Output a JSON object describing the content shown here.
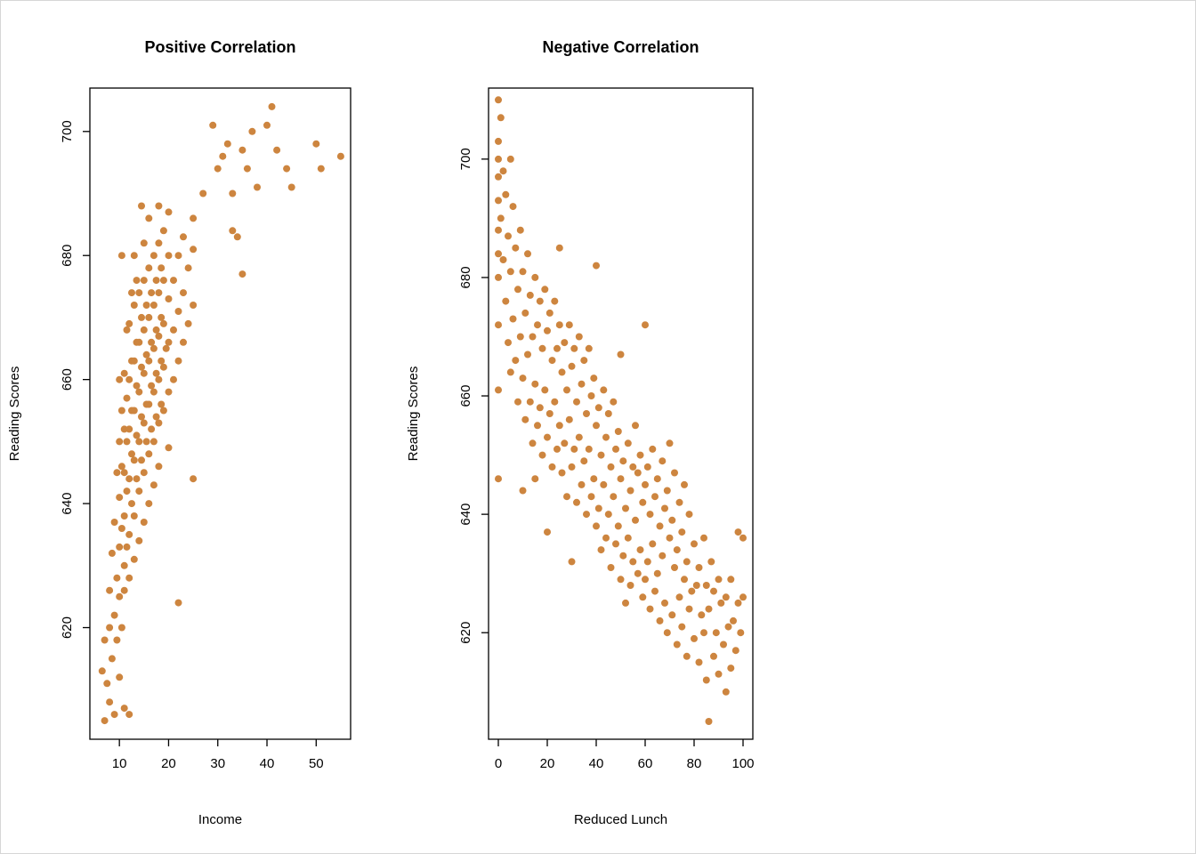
{
  "page": {
    "background": "#ffffff"
  },
  "chart_data": [
    {
      "type": "scatter",
      "title": "Positive Correlation",
      "xlabel": "Income",
      "ylabel": "Reading Scores",
      "xlim": [
        4,
        57
      ],
      "ylim": [
        602,
        707
      ],
      "xticks": [
        10,
        20,
        30,
        40,
        50
      ],
      "yticks": [
        620,
        640,
        660,
        680,
        700
      ],
      "point_color": "#CD853F",
      "grid": false,
      "points": [
        [
          6.5,
          613
        ],
        [
          7,
          605
        ],
        [
          7,
          618
        ],
        [
          7.5,
          611
        ],
        [
          8,
          620
        ],
        [
          8,
          608
        ],
        [
          8,
          626
        ],
        [
          8.5,
          615
        ],
        [
          8.5,
          632
        ],
        [
          9,
          606
        ],
        [
          9,
          622
        ],
        [
          9,
          637
        ],
        [
          9.5,
          628
        ],
        [
          9.5,
          645
        ],
        [
          9.5,
          618
        ],
        [
          10,
          612
        ],
        [
          10,
          625
        ],
        [
          10,
          633
        ],
        [
          10,
          641
        ],
        [
          10,
          650
        ],
        [
          10,
          660
        ],
        [
          10.5,
          636
        ],
        [
          10.5,
          646
        ],
        [
          10.5,
          655
        ],
        [
          10.5,
          620
        ],
        [
          10.5,
          680
        ],
        [
          11,
          630
        ],
        [
          11,
          638
        ],
        [
          11,
          645
        ],
        [
          11,
          652
        ],
        [
          11,
          661
        ],
        [
          11,
          626
        ],
        [
          11,
          607
        ],
        [
          11.5,
          642
        ],
        [
          11.5,
          650
        ],
        [
          11.5,
          657
        ],
        [
          11.5,
          633
        ],
        [
          11.5,
          668
        ],
        [
          12,
          635
        ],
        [
          12,
          644
        ],
        [
          12,
          652
        ],
        [
          12,
          660
        ],
        [
          12,
          669
        ],
        [
          12,
          628
        ],
        [
          12,
          606
        ],
        [
          12.5,
          648
        ],
        [
          12.5,
          655
        ],
        [
          12.5,
          663
        ],
        [
          12.5,
          640
        ],
        [
          12.5,
          674
        ],
        [
          13,
          638
        ],
        [
          13,
          647
        ],
        [
          13,
          655
        ],
        [
          13,
          663
        ],
        [
          13,
          672
        ],
        [
          13,
          631
        ],
        [
          13,
          680
        ],
        [
          13.5,
          651
        ],
        [
          13.5,
          659
        ],
        [
          13.5,
          666
        ],
        [
          13.5,
          644
        ],
        [
          13.5,
          676
        ],
        [
          14,
          642
        ],
        [
          14,
          650
        ],
        [
          14,
          658
        ],
        [
          14,
          666
        ],
        [
          14,
          674
        ],
        [
          14,
          634
        ],
        [
          14.5,
          654
        ],
        [
          14.5,
          662
        ],
        [
          14.5,
          670
        ],
        [
          14.5,
          647
        ],
        [
          14.5,
          688
        ],
        [
          15,
          645
        ],
        [
          15,
          653
        ],
        [
          15,
          661
        ],
        [
          15,
          668
        ],
        [
          15,
          676
        ],
        [
          15,
          637
        ],
        [
          15,
          682
        ],
        [
          15.5,
          656
        ],
        [
          15.5,
          664
        ],
        [
          15.5,
          672
        ],
        [
          15.5,
          650
        ],
        [
          16,
          648
        ],
        [
          16,
          656
        ],
        [
          16,
          663
        ],
        [
          16,
          670
        ],
        [
          16,
          678
        ],
        [
          16,
          640
        ],
        [
          16,
          686
        ],
        [
          16.5,
          659
        ],
        [
          16.5,
          666
        ],
        [
          16.5,
          674
        ],
        [
          16.5,
          652
        ],
        [
          17,
          650
        ],
        [
          17,
          658
        ],
        [
          17,
          665
        ],
        [
          17,
          672
        ],
        [
          17,
          680
        ],
        [
          17,
          643
        ],
        [
          17.5,
          661
        ],
        [
          17.5,
          668
        ],
        [
          17.5,
          676
        ],
        [
          17.5,
          654
        ],
        [
          18,
          653
        ],
        [
          18,
          660
        ],
        [
          18,
          667
        ],
        [
          18,
          674
        ],
        [
          18,
          682
        ],
        [
          18,
          646
        ],
        [
          18,
          688
        ],
        [
          18.5,
          663
        ],
        [
          18.5,
          670
        ],
        [
          18.5,
          678
        ],
        [
          18.5,
          656
        ],
        [
          19,
          655
        ],
        [
          19,
          662
        ],
        [
          19,
          669
        ],
        [
          19,
          676
        ],
        [
          19,
          684
        ],
        [
          19.5,
          665
        ],
        [
          20,
          658
        ],
        [
          20,
          666
        ],
        [
          20,
          673
        ],
        [
          20,
          680
        ],
        [
          20,
          687
        ],
        [
          20,
          649
        ],
        [
          21,
          660
        ],
        [
          21,
          668
        ],
        [
          21,
          676
        ],
        [
          22,
          663
        ],
        [
          22,
          671
        ],
        [
          22,
          680
        ],
        [
          22,
          624
        ],
        [
          23,
          666
        ],
        [
          23,
          674
        ],
        [
          23,
          683
        ],
        [
          24,
          669
        ],
        [
          24,
          678
        ],
        [
          25,
          672
        ],
        [
          25,
          681
        ],
        [
          25,
          644
        ],
        [
          25,
          686
        ],
        [
          27,
          690
        ],
        [
          29,
          701
        ],
        [
          30,
          694
        ],
        [
          31,
          696
        ],
        [
          32,
          698
        ],
        [
          33,
          690
        ],
        [
          33,
          684
        ],
        [
          34,
          683
        ],
        [
          35,
          677
        ],
        [
          35,
          697
        ],
        [
          36,
          694
        ],
        [
          37,
          700
        ],
        [
          38,
          691
        ],
        [
          40,
          701
        ],
        [
          41,
          704
        ],
        [
          42,
          697
        ],
        [
          44,
          694
        ],
        [
          45,
          691
        ],
        [
          50,
          698
        ],
        [
          51,
          694
        ],
        [
          55,
          696
        ]
      ]
    },
    {
      "type": "scatter",
      "title": "Negative Correlation",
      "xlabel": "Reduced Lunch",
      "ylabel": "Reading Scores",
      "xlim": [
        -4,
        104
      ],
      "ylim": [
        602,
        712
      ],
      "xticks": [
        0,
        20,
        40,
        60,
        80,
        100
      ],
      "yticks": [
        620,
        640,
        660,
        680,
        700
      ],
      "point_color": "#CD853F",
      "grid": false,
      "points": [
        [
          0,
          710
        ],
        [
          0,
          703
        ],
        [
          0,
          700
        ],
        [
          0,
          697
        ],
        [
          0,
          693
        ],
        [
          0,
          688
        ],
        [
          0,
          684
        ],
        [
          0,
          680
        ],
        [
          0,
          672
        ],
        [
          0,
          661
        ],
        [
          0,
          646
        ],
        [
          1,
          707
        ],
        [
          1,
          690
        ],
        [
          2,
          698
        ],
        [
          2,
          683
        ],
        [
          3,
          694
        ],
        [
          3,
          676
        ],
        [
          4,
          687
        ],
        [
          4,
          669
        ],
        [
          5,
          700
        ],
        [
          5,
          681
        ],
        [
          5,
          664
        ],
        [
          6,
          692
        ],
        [
          6,
          673
        ],
        [
          7,
          685
        ],
        [
          7,
          666
        ],
        [
          8,
          678
        ],
        [
          8,
          659
        ],
        [
          9,
          688
        ],
        [
          9,
          670
        ],
        [
          10,
          681
        ],
        [
          10,
          663
        ],
        [
          10,
          644
        ],
        [
          11,
          674
        ],
        [
          11,
          656
        ],
        [
          12,
          684
        ],
        [
          12,
          667
        ],
        [
          13,
          677
        ],
        [
          13,
          659
        ],
        [
          14,
          670
        ],
        [
          14,
          652
        ],
        [
          15,
          680
        ],
        [
          15,
          662
        ],
        [
          15,
          646
        ],
        [
          16,
          672
        ],
        [
          16,
          655
        ],
        [
          17,
          676
        ],
        [
          17,
          658
        ],
        [
          18,
          668
        ],
        [
          18,
          650
        ],
        [
          19,
          678
        ],
        [
          19,
          661
        ],
        [
          20,
          671
        ],
        [
          20,
          653
        ],
        [
          20,
          637
        ],
        [
          21,
          674
        ],
        [
          21,
          657
        ],
        [
          22,
          666
        ],
        [
          22,
          648
        ],
        [
          23,
          676
        ],
        [
          23,
          659
        ],
        [
          24,
          668
        ],
        [
          24,
          651
        ],
        [
          25,
          672
        ],
        [
          25,
          655
        ],
        [
          25,
          685
        ],
        [
          26,
          664
        ],
        [
          26,
          647
        ],
        [
          27,
          669
        ],
        [
          27,
          652
        ],
        [
          28,
          661
        ],
        [
          28,
          643
        ],
        [
          29,
          672
        ],
        [
          29,
          656
        ],
        [
          30,
          665
        ],
        [
          30,
          648
        ],
        [
          30,
          632
        ],
        [
          31,
          668
        ],
        [
          31,
          651
        ],
        [
          32,
          659
        ],
        [
          32,
          642
        ],
        [
          33,
          670
        ],
        [
          33,
          653
        ],
        [
          34,
          662
        ],
        [
          34,
          645
        ],
        [
          35,
          666
        ],
        [
          35,
          649
        ],
        [
          36,
          657
        ],
        [
          36,
          640
        ],
        [
          37,
          668
        ],
        [
          37,
          651
        ],
        [
          38,
          660
        ],
        [
          38,
          643
        ],
        [
          39,
          663
        ],
        [
          39,
          646
        ],
        [
          40,
          655
        ],
        [
          40,
          638
        ],
        [
          40,
          682
        ],
        [
          41,
          658
        ],
        [
          41,
          641
        ],
        [
          42,
          650
        ],
        [
          42,
          634
        ],
        [
          43,
          661
        ],
        [
          43,
          645
        ],
        [
          44,
          653
        ],
        [
          44,
          636
        ],
        [
          45,
          657
        ],
        [
          45,
          640
        ],
        [
          46,
          648
        ],
        [
          46,
          631
        ],
        [
          47,
          659
        ],
        [
          47,
          643
        ],
        [
          48,
          651
        ],
        [
          48,
          635
        ],
        [
          49,
          654
        ],
        [
          49,
          638
        ],
        [
          50,
          646
        ],
        [
          50,
          629
        ],
        [
          50,
          667
        ],
        [
          51,
          649
        ],
        [
          51,
          633
        ],
        [
          52,
          641
        ],
        [
          52,
          625
        ],
        [
          53,
          652
        ],
        [
          53,
          636
        ],
        [
          54,
          644
        ],
        [
          54,
          628
        ],
        [
          55,
          648
        ],
        [
          55,
          632
        ],
        [
          56,
          655
        ],
        [
          56,
          639
        ],
        [
          57,
          647
        ],
        [
          57,
          630
        ],
        [
          58,
          650
        ],
        [
          58,
          634
        ],
        [
          59,
          642
        ],
        [
          59,
          626
        ],
        [
          60,
          645
        ],
        [
          60,
          629
        ],
        [
          60,
          672
        ],
        [
          61,
          648
        ],
        [
          61,
          632
        ],
        [
          62,
          640
        ],
        [
          62,
          624
        ],
        [
          63,
          651
        ],
        [
          63,
          635
        ],
        [
          64,
          643
        ],
        [
          64,
          627
        ],
        [
          65,
          646
        ],
        [
          65,
          630
        ],
        [
          66,
          638
        ],
        [
          66,
          622
        ],
        [
          67,
          649
        ],
        [
          67,
          633
        ],
        [
          68,
          641
        ],
        [
          68,
          625
        ],
        [
          69,
          644
        ],
        [
          69,
          620
        ],
        [
          70,
          636
        ],
        [
          70,
          652
        ],
        [
          71,
          639
        ],
        [
          71,
          623
        ],
        [
          72,
          631
        ],
        [
          72,
          647
        ],
        [
          73,
          634
        ],
        [
          73,
          618
        ],
        [
          74,
          642
        ],
        [
          74,
          626
        ],
        [
          75,
          637
        ],
        [
          75,
          621
        ],
        [
          76,
          629
        ],
        [
          76,
          645
        ],
        [
          77,
          632
        ],
        [
          77,
          616
        ],
        [
          78,
          640
        ],
        [
          78,
          624
        ],
        [
          79,
          627
        ],
        [
          80,
          635
        ],
        [
          80,
          619
        ],
        [
          81,
          628
        ],
        [
          82,
          631
        ],
        [
          82,
          615
        ],
        [
          83,
          623
        ],
        [
          84,
          636
        ],
        [
          84,
          620
        ],
        [
          85,
          628
        ],
        [
          85,
          612
        ],
        [
          86,
          605
        ],
        [
          86,
          624
        ],
        [
          87,
          632
        ],
        [
          88,
          616
        ],
        [
          88,
          627
        ],
        [
          89,
          620
        ],
        [
          90,
          629
        ],
        [
          90,
          613
        ],
        [
          91,
          625
        ],
        [
          92,
          618
        ],
        [
          93,
          610
        ],
        [
          93,
          626
        ],
        [
          94,
          621
        ],
        [
          95,
          614
        ],
        [
          95,
          629
        ],
        [
          96,
          622
        ],
        [
          97,
          617
        ],
        [
          98,
          625
        ],
        [
          98,
          637
        ],
        [
          99,
          620
        ],
        [
          100,
          636
        ],
        [
          100,
          626
        ]
      ]
    }
  ]
}
